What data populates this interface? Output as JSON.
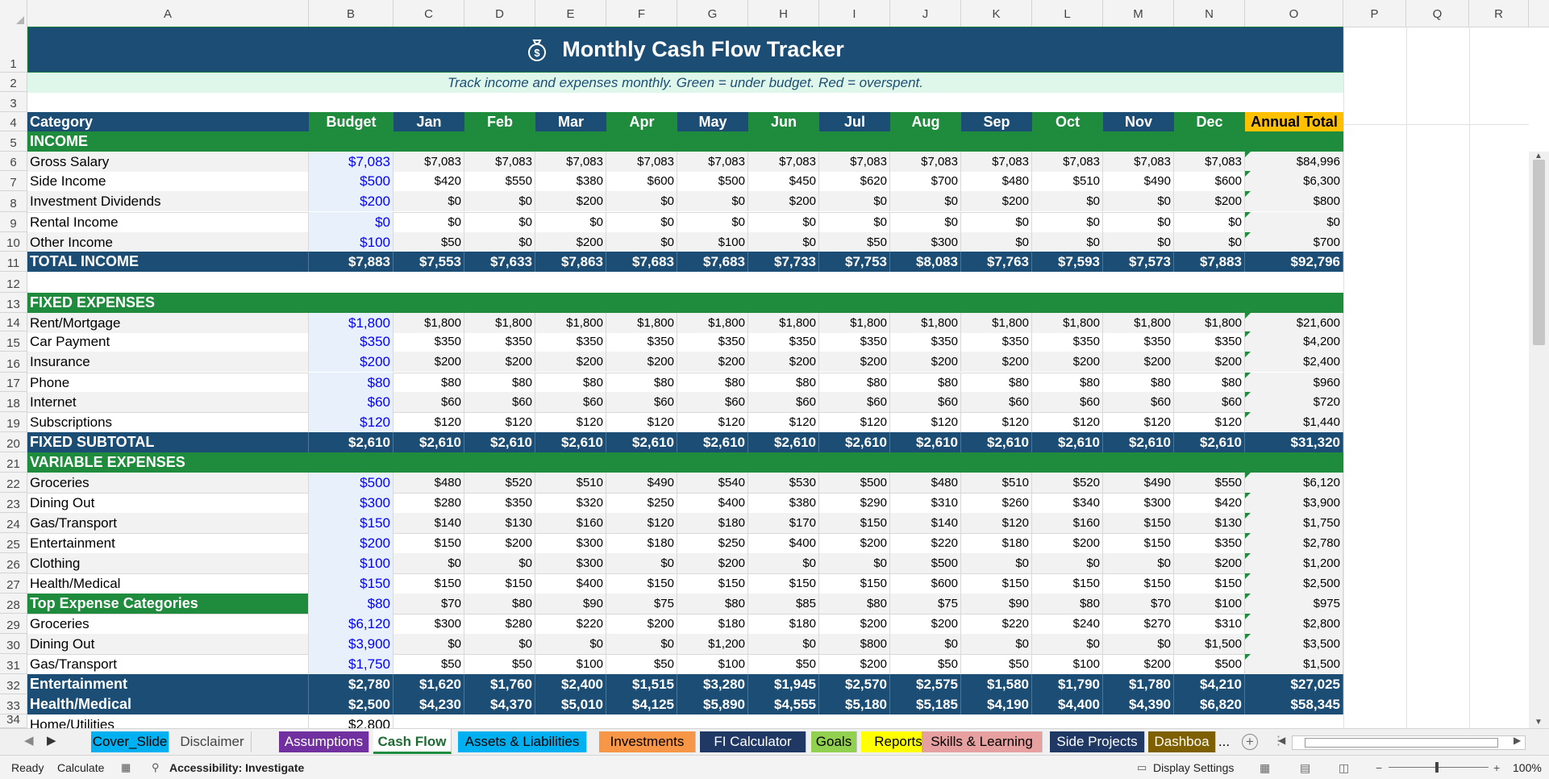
{
  "columns": [
    "A",
    "B",
    "C",
    "D",
    "E",
    "F",
    "G",
    "H",
    "I",
    "J",
    "K",
    "L",
    "M",
    "N",
    "O",
    "P",
    "Q",
    "R"
  ],
  "row_numbers": [
    "1",
    "2",
    "3",
    "4",
    "5",
    "6",
    "7",
    "8",
    "9",
    "10",
    "11",
    "12",
    "13",
    "14",
    "15",
    "16",
    "17",
    "18",
    "19",
    "20",
    "21",
    "22",
    "23",
    "24",
    "25",
    "26",
    "27",
    "28",
    "29",
    "30",
    "31",
    "32",
    "33",
    "34"
  ],
  "title": "Monthly Cash Flow Tracker",
  "subtitle": "Track income and expenses monthly. Green = under budget. Red = overspent.",
  "header": {
    "category": "Category",
    "budget": "Budget",
    "months": [
      "Jan",
      "Feb",
      "Mar",
      "Apr",
      "May",
      "Jun",
      "Jul",
      "Aug",
      "Sep",
      "Oct",
      "Nov",
      "Dec"
    ],
    "annual_total": "Annual Total"
  },
  "sections": {
    "income": "INCOME",
    "fixed": "FIXED EXPENSES",
    "variable": "VARIABLE EXPENSES"
  },
  "income_rows": [
    {
      "label": "Gross Salary",
      "budget": "$7,083",
      "months": [
        "$7,083",
        "$7,083",
        "$7,083",
        "$7,083",
        "$7,083",
        "$7,083",
        "$7,083",
        "$7,083",
        "$7,083",
        "$7,083",
        "$7,083",
        "$7,083"
      ],
      "total": "$84,996"
    },
    {
      "label": "Side Income",
      "budget": "$500",
      "months": [
        "$420",
        "$550",
        "$380",
        "$600",
        "$500",
        "$450",
        "$620",
        "$700",
        "$480",
        "$510",
        "$490",
        "$600"
      ],
      "total": "$6,300"
    },
    {
      "label": "Investment Dividends",
      "budget": "$200",
      "months": [
        "$0",
        "$0",
        "$200",
        "$0",
        "$0",
        "$200",
        "$0",
        "$0",
        "$200",
        "$0",
        "$0",
        "$200"
      ],
      "total": "$800"
    },
    {
      "label": "Rental Income",
      "budget": "$0",
      "months": [
        "$0",
        "$0",
        "$0",
        "$0",
        "$0",
        "$0",
        "$0",
        "$0",
        "$0",
        "$0",
        "$0",
        "$0"
      ],
      "total": "$0"
    },
    {
      "label": "Other Income",
      "budget": "$100",
      "months": [
        "$50",
        "$0",
        "$200",
        "$0",
        "$100",
        "$0",
        "$50",
        "$300",
        "$0",
        "$0",
        "$0",
        "$0"
      ],
      "total": "$700"
    }
  ],
  "total_income": {
    "label": "TOTAL INCOME",
    "budget": "$7,883",
    "months": [
      "$7,553",
      "$7,633",
      "$7,863",
      "$7,683",
      "$7,683",
      "$7,733",
      "$7,753",
      "$8,083",
      "$7,763",
      "$7,593",
      "$7,573",
      "$7,883"
    ],
    "total": "$92,796"
  },
  "fixed_rows": [
    {
      "label": "Rent/Mortgage",
      "budget": "$1,800",
      "months": [
        "$1,800",
        "$1,800",
        "$1,800",
        "$1,800",
        "$1,800",
        "$1,800",
        "$1,800",
        "$1,800",
        "$1,800",
        "$1,800",
        "$1,800",
        "$1,800"
      ],
      "total": "$21,600"
    },
    {
      "label": "Car Payment",
      "budget": "$350",
      "months": [
        "$350",
        "$350",
        "$350",
        "$350",
        "$350",
        "$350",
        "$350",
        "$350",
        "$350",
        "$350",
        "$350",
        "$350"
      ],
      "total": "$4,200"
    },
    {
      "label": "Insurance",
      "budget": "$200",
      "months": [
        "$200",
        "$200",
        "$200",
        "$200",
        "$200",
        "$200",
        "$200",
        "$200",
        "$200",
        "$200",
        "$200",
        "$200"
      ],
      "total": "$2,400"
    },
    {
      "label": "Phone",
      "budget": "$80",
      "months": [
        "$80",
        "$80",
        "$80",
        "$80",
        "$80",
        "$80",
        "$80",
        "$80",
        "$80",
        "$80",
        "$80",
        "$80"
      ],
      "total": "$960"
    },
    {
      "label": "Internet",
      "budget": "$60",
      "months": [
        "$60",
        "$60",
        "$60",
        "$60",
        "$60",
        "$60",
        "$60",
        "$60",
        "$60",
        "$60",
        "$60",
        "$60"
      ],
      "total": "$720"
    },
    {
      "label": "Subscriptions",
      "budget": "$120",
      "months": [
        "$120",
        "$120",
        "$120",
        "$120",
        "$120",
        "$120",
        "$120",
        "$120",
        "$120",
        "$120",
        "$120",
        "$120"
      ],
      "total": "$1,440"
    }
  ],
  "fixed_subtotal": {
    "label": "FIXED SUBTOTAL",
    "budget": "$2,610",
    "months": [
      "$2,610",
      "$2,610",
      "$2,610",
      "$2,610",
      "$2,610",
      "$2,610",
      "$2,610",
      "$2,610",
      "$2,610",
      "$2,610",
      "$2,610",
      "$2,610"
    ],
    "total": "$31,320"
  },
  "variable_rows": [
    {
      "label": "Groceries",
      "budget": "$500",
      "months": [
        "$480",
        "$520",
        "$510",
        "$490",
        "$540",
        "$530",
        "$500",
        "$480",
        "$510",
        "$520",
        "$490",
        "$550"
      ],
      "total": "$6,120"
    },
    {
      "label": "Dining Out",
      "budget": "$300",
      "months": [
        "$280",
        "$350",
        "$320",
        "$250",
        "$400",
        "$380",
        "$290",
        "$310",
        "$260",
        "$340",
        "$300",
        "$420"
      ],
      "total": "$3,900"
    },
    {
      "label": "Gas/Transport",
      "budget": "$150",
      "months": [
        "$140",
        "$130",
        "$160",
        "$120",
        "$180",
        "$170",
        "$150",
        "$140",
        "$120",
        "$160",
        "$150",
        "$130"
      ],
      "total": "$1,750"
    },
    {
      "label": "Entertainment",
      "budget": "$200",
      "months": [
        "$150",
        "$200",
        "$300",
        "$180",
        "$250",
        "$400",
        "$200",
        "$220",
        "$180",
        "$200",
        "$150",
        "$350"
      ],
      "total": "$2,780"
    },
    {
      "label": "Clothing",
      "budget": "$100",
      "months": [
        "$0",
        "$0",
        "$300",
        "$0",
        "$200",
        "$0",
        "$0",
        "$500",
        "$0",
        "$0",
        "$0",
        "$200"
      ],
      "total": "$1,200"
    },
    {
      "label": "Health/Medical",
      "budget": "$150",
      "months": [
        "$150",
        "$150",
        "$400",
        "$150",
        "$150",
        "$150",
        "$150",
        "$600",
        "$150",
        "$150",
        "$150",
        "$150"
      ],
      "total": "$2,500"
    },
    {
      "label": "Top Expense Categories",
      "budget": "$80",
      "months": [
        "$70",
        "$80",
        "$90",
        "$75",
        "$80",
        "$85",
        "$80",
        "$75",
        "$90",
        "$80",
        "$70",
        "$100"
      ],
      "total": "$975"
    },
    {
      "label": "Groceries",
      "budget": "$6,120",
      "months": [
        "$300",
        "$280",
        "$220",
        "$200",
        "$180",
        "$180",
        "$200",
        "$200",
        "$220",
        "$240",
        "$270",
        "$310"
      ],
      "total": "$2,800"
    },
    {
      "label": "Dining Out",
      "budget": "$3,900",
      "months": [
        "$0",
        "$0",
        "$0",
        "$0",
        "$1,200",
        "$0",
        "$800",
        "$0",
        "$0",
        "$0",
        "$0",
        "$1,500"
      ],
      "total": "$3,500"
    },
    {
      "label": "Gas/Transport",
      "budget": "$1,750",
      "months": [
        "$50",
        "$50",
        "$100",
        "$50",
        "$100",
        "$50",
        "$200",
        "$50",
        "$50",
        "$100",
        "$200",
        "$500"
      ],
      "total": "$1,500"
    }
  ],
  "bottom_totals": [
    {
      "label": "Entertainment",
      "budget": "$2,780",
      "months": [
        "$1,620",
        "$1,760",
        "$2,400",
        "$1,515",
        "$3,280",
        "$1,945",
        "$2,570",
        "$2,575",
        "$1,580",
        "$1,790",
        "$1,780",
        "$4,210"
      ],
      "total": "$27,025"
    },
    {
      "label": "Health/Medical",
      "budget": "$2,500",
      "months": [
        "$4,230",
        "$4,370",
        "$5,010",
        "$4,125",
        "$5,890",
        "$4,555",
        "$5,180",
        "$5,185",
        "$4,190",
        "$4,400",
        "$4,390",
        "$6,820"
      ],
      "total": "$58,345"
    }
  ],
  "row34": {
    "label": "Home/Utilities",
    "budget": "$2,800"
  },
  "tabs": [
    {
      "label": "Cover_Slide",
      "color": "#00b0f0",
      "text": "#000000"
    },
    {
      "label": "Disclaimer",
      "color": "#f0f0f0",
      "text": "#444444"
    },
    {
      "label": "Assumptions",
      "color": "#7030a0",
      "text": "#ffffff"
    },
    {
      "label": "Cash Flow",
      "color": "#ffffff",
      "text": "#1e6b34"
    },
    {
      "label": "Assets & Liabilities",
      "color": "#00b0f0",
      "text": "#000000"
    },
    {
      "label": "Investments",
      "color": "#f79646",
      "text": "#000000"
    },
    {
      "label": "FI Calculator",
      "color": "#1f3864",
      "text": "#ffffff"
    },
    {
      "label": "Goals",
      "color": "#92d050",
      "text": "#000000"
    },
    {
      "label": "Reports",
      "color": "#ffff00",
      "text": "#000000"
    },
    {
      "label": "Skills & Learning",
      "color": "#e6a0a0",
      "text": "#000000"
    },
    {
      "label": "Side Projects",
      "color": "#1f3864",
      "text": "#ffffff"
    },
    {
      "label": "Dashboa",
      "color": "#7f6000",
      "text": "#ffffff"
    }
  ],
  "tab_more": "...",
  "status": {
    "ready": "Ready",
    "calculate": "Calculate",
    "accessibility": "Accessibility: Investigate",
    "display_settings": "Display Settings",
    "zoom": "100%"
  },
  "colors": {
    "header_blue": "#1c4e75",
    "section_green": "#1e8c3c",
    "annual_gold": "#ffc000",
    "budget_text_blue": "#0000ff",
    "subtitle_bg": "#dff6ea"
  }
}
